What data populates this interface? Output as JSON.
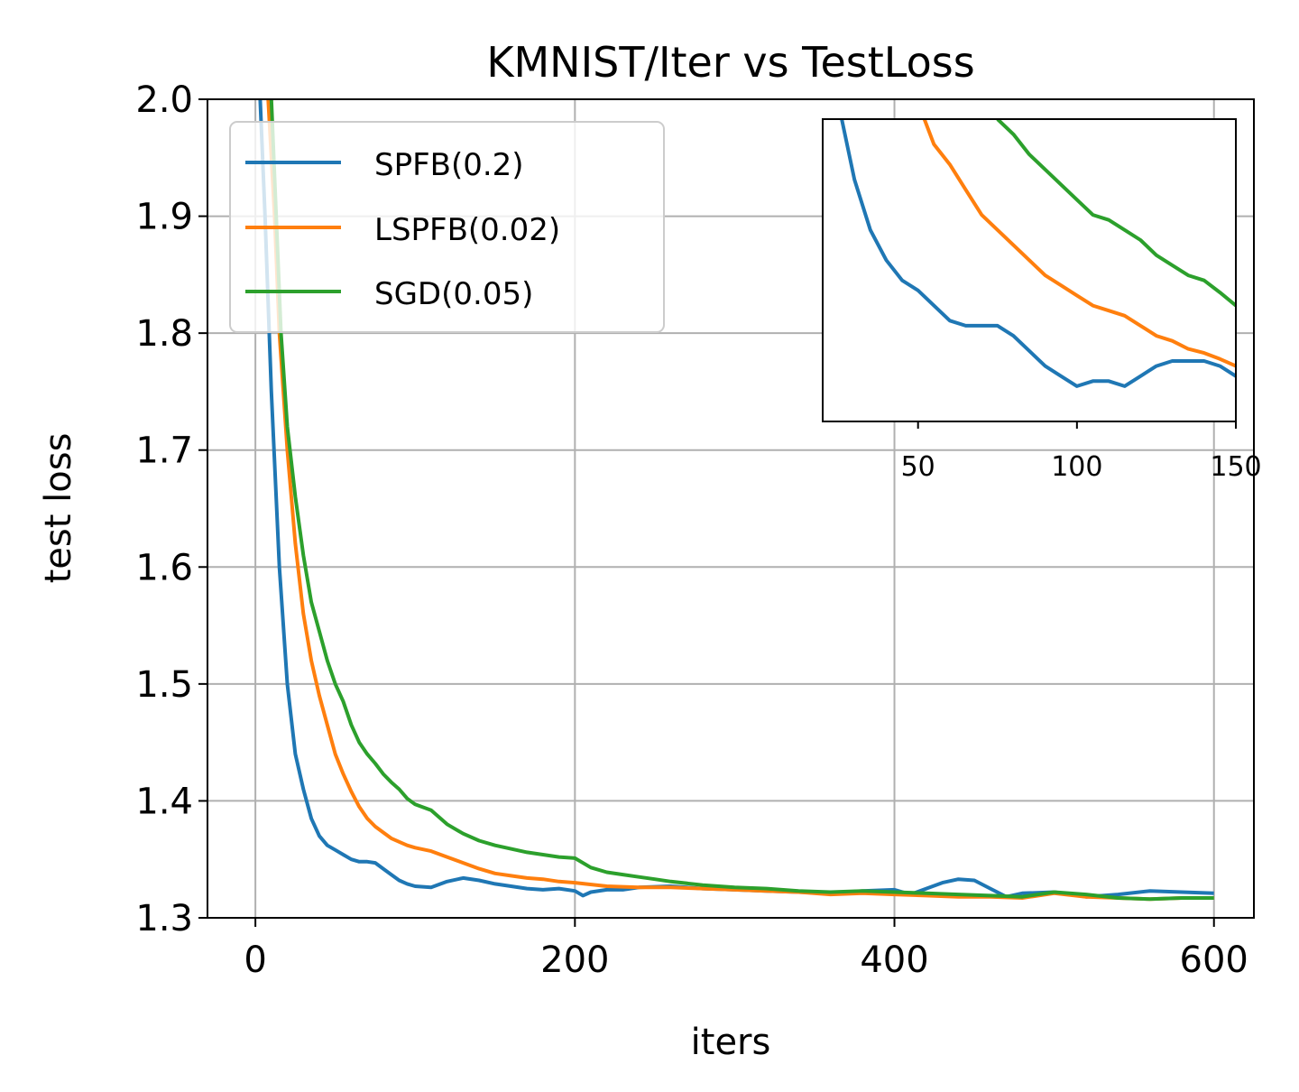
{
  "chart_data": [
    {
      "type": "line",
      "title": "KMNIST/Iter vs TestLoss",
      "xlabel": "iters",
      "ylabel": "test loss",
      "xlim": [
        -30,
        625
      ],
      "ylim": [
        1.3,
        2.0
      ],
      "xticks": [
        0,
        200,
        400,
        600
      ],
      "xtick_labels": [
        "0",
        "200",
        "400",
        "600"
      ],
      "yticks": [
        1.3,
        1.4,
        1.5,
        1.6,
        1.7,
        1.8,
        1.9,
        2.0
      ],
      "ytick_labels": [
        "1.3",
        "1.4",
        "1.5",
        "1.6",
        "1.7",
        "1.8",
        "1.9",
        "2.0"
      ],
      "grid": true,
      "legend_position": "top-left",
      "series": [
        {
          "name": "SPFB(0.2)",
          "color": "#1f77b4",
          "x": [
            3,
            6,
            10,
            15,
            20,
            25,
            30,
            35,
            40,
            45,
            50,
            55,
            60,
            65,
            70,
            75,
            80,
            85,
            90,
            95,
            100,
            110,
            120,
            130,
            140,
            150,
            160,
            170,
            180,
            190,
            200,
            205,
            210,
            220,
            230,
            240,
            260,
            280,
            300,
            320,
            340,
            360,
            380,
            400,
            410,
            420,
            430,
            440,
            450,
            460,
            470,
            480,
            500,
            520,
            540,
            560,
            580,
            600
          ],
          "y": [
            2.0,
            1.9,
            1.75,
            1.6,
            1.5,
            1.44,
            1.41,
            1.385,
            1.37,
            1.362,
            1.358,
            1.354,
            1.35,
            1.348,
            1.348,
            1.347,
            1.342,
            1.337,
            1.332,
            1.329,
            1.327,
            1.326,
            1.331,
            1.334,
            1.332,
            1.329,
            1.327,
            1.325,
            1.324,
            1.325,
            1.323,
            1.319,
            1.322,
            1.324,
            1.324,
            1.326,
            1.327,
            1.325,
            1.324,
            1.323,
            1.322,
            1.321,
            1.323,
            1.324,
            1.32,
            1.325,
            1.33,
            1.333,
            1.332,
            1.325,
            1.318,
            1.321,
            1.322,
            1.318,
            1.32,
            1.323,
            1.322,
            1.321
          ]
        },
        {
          "name": "LSPFB(0.02)",
          "color": "#ff7f0e",
          "x": [
            8,
            12,
            15,
            20,
            25,
            30,
            35,
            40,
            45,
            50,
            55,
            60,
            65,
            70,
            75,
            80,
            85,
            90,
            95,
            100,
            110,
            120,
            130,
            140,
            150,
            160,
            170,
            180,
            190,
            200,
            220,
            240,
            260,
            280,
            300,
            320,
            340,
            360,
            380,
            400,
            420,
            440,
            460,
            480,
            500,
            520,
            540,
            560,
            580,
            600
          ],
          "y": [
            2.0,
            1.9,
            1.8,
            1.7,
            1.62,
            1.56,
            1.52,
            1.49,
            1.465,
            1.44,
            1.423,
            1.408,
            1.395,
            1.385,
            1.378,
            1.373,
            1.368,
            1.365,
            1.362,
            1.36,
            1.357,
            1.352,
            1.347,
            1.342,
            1.338,
            1.336,
            1.334,
            1.333,
            1.331,
            1.33,
            1.327,
            1.326,
            1.326,
            1.325,
            1.324,
            1.323,
            1.322,
            1.32,
            1.321,
            1.32,
            1.319,
            1.318,
            1.318,
            1.317,
            1.321,
            1.318,
            1.317,
            1.316,
            1.317,
            1.317
          ]
        },
        {
          "name": "SGD(0.05)",
          "color": "#2ca02c",
          "x": [
            10,
            13,
            16,
            20,
            25,
            30,
            35,
            40,
            45,
            50,
            55,
            60,
            65,
            70,
            75,
            80,
            85,
            90,
            95,
            100,
            110,
            120,
            130,
            140,
            150,
            160,
            170,
            180,
            190,
            200,
            210,
            220,
            230,
            240,
            250,
            260,
            280,
            300,
            320,
            340,
            360,
            380,
            400,
            420,
            440,
            460,
            480,
            500,
            520,
            540,
            560,
            580,
            600
          ],
          "y": [
            2.0,
            1.9,
            1.8,
            1.72,
            1.66,
            1.61,
            1.57,
            1.545,
            1.52,
            1.5,
            1.485,
            1.465,
            1.45,
            1.44,
            1.432,
            1.423,
            1.416,
            1.41,
            1.402,
            1.397,
            1.392,
            1.38,
            1.372,
            1.366,
            1.362,
            1.359,
            1.356,
            1.354,
            1.352,
            1.351,
            1.343,
            1.339,
            1.337,
            1.335,
            1.333,
            1.331,
            1.328,
            1.326,
            1.325,
            1.323,
            1.322,
            1.323,
            1.322,
            1.321,
            1.32,
            1.319,
            1.318,
            1.322,
            1.32,
            1.317,
            1.316,
            1.317,
            1.317
          ]
        }
      ]
    },
    {
      "type": "line",
      "title": "",
      "xlabel": "",
      "ylabel": "",
      "xlim": [
        20,
        150
      ],
      "ylim": [
        1.335,
        1.365
      ],
      "xticks": [
        50,
        100,
        150
      ],
      "xtick_labels": [
        "50",
        "100",
        "150"
      ],
      "grid": false,
      "series": [
        {
          "name": "SPFB(0.2)",
          "color": "#1f77b4",
          "x": [
            26,
            30,
            35,
            40,
            45,
            50,
            55,
            60,
            65,
            70,
            75,
            80,
            85,
            90,
            95,
            100,
            105,
            110,
            115,
            120,
            125,
            130,
            135,
            140,
            145,
            150
          ],
          "y": [
            1.365,
            1.359,
            1.354,
            1.351,
            1.349,
            1.348,
            1.3465,
            1.345,
            1.3445,
            1.3445,
            1.3445,
            1.3435,
            1.342,
            1.3405,
            1.3395,
            1.3385,
            1.339,
            1.339,
            1.3385,
            1.3395,
            1.3405,
            1.341,
            1.341,
            1.341,
            1.3405,
            1.3395
          ]
        },
        {
          "name": "LSPFB(0.02)",
          "color": "#ff7f0e",
          "x": [
            52,
            55,
            60,
            65,
            70,
            75,
            80,
            85,
            90,
            95,
            100,
            105,
            110,
            115,
            120,
            125,
            130,
            135,
            140,
            145,
            150
          ],
          "y": [
            1.365,
            1.3625,
            1.3605,
            1.358,
            1.3555,
            1.354,
            1.3525,
            1.351,
            1.3495,
            1.3485,
            1.3475,
            1.3465,
            1.346,
            1.3455,
            1.3445,
            1.3435,
            1.343,
            1.3422,
            1.3418,
            1.3412,
            1.3405
          ]
        },
        {
          "name": "SGD(0.05)",
          "color": "#2ca02c",
          "x": [
            75,
            80,
            85,
            90,
            95,
            100,
            105,
            110,
            115,
            120,
            125,
            130,
            135,
            140,
            145,
            150
          ],
          "y": [
            1.365,
            1.3635,
            1.3615,
            1.36,
            1.3585,
            1.357,
            1.3555,
            1.355,
            1.354,
            1.353,
            1.3515,
            1.3505,
            1.3495,
            1.349,
            1.3478,
            1.3465
          ]
        }
      ]
    }
  ]
}
